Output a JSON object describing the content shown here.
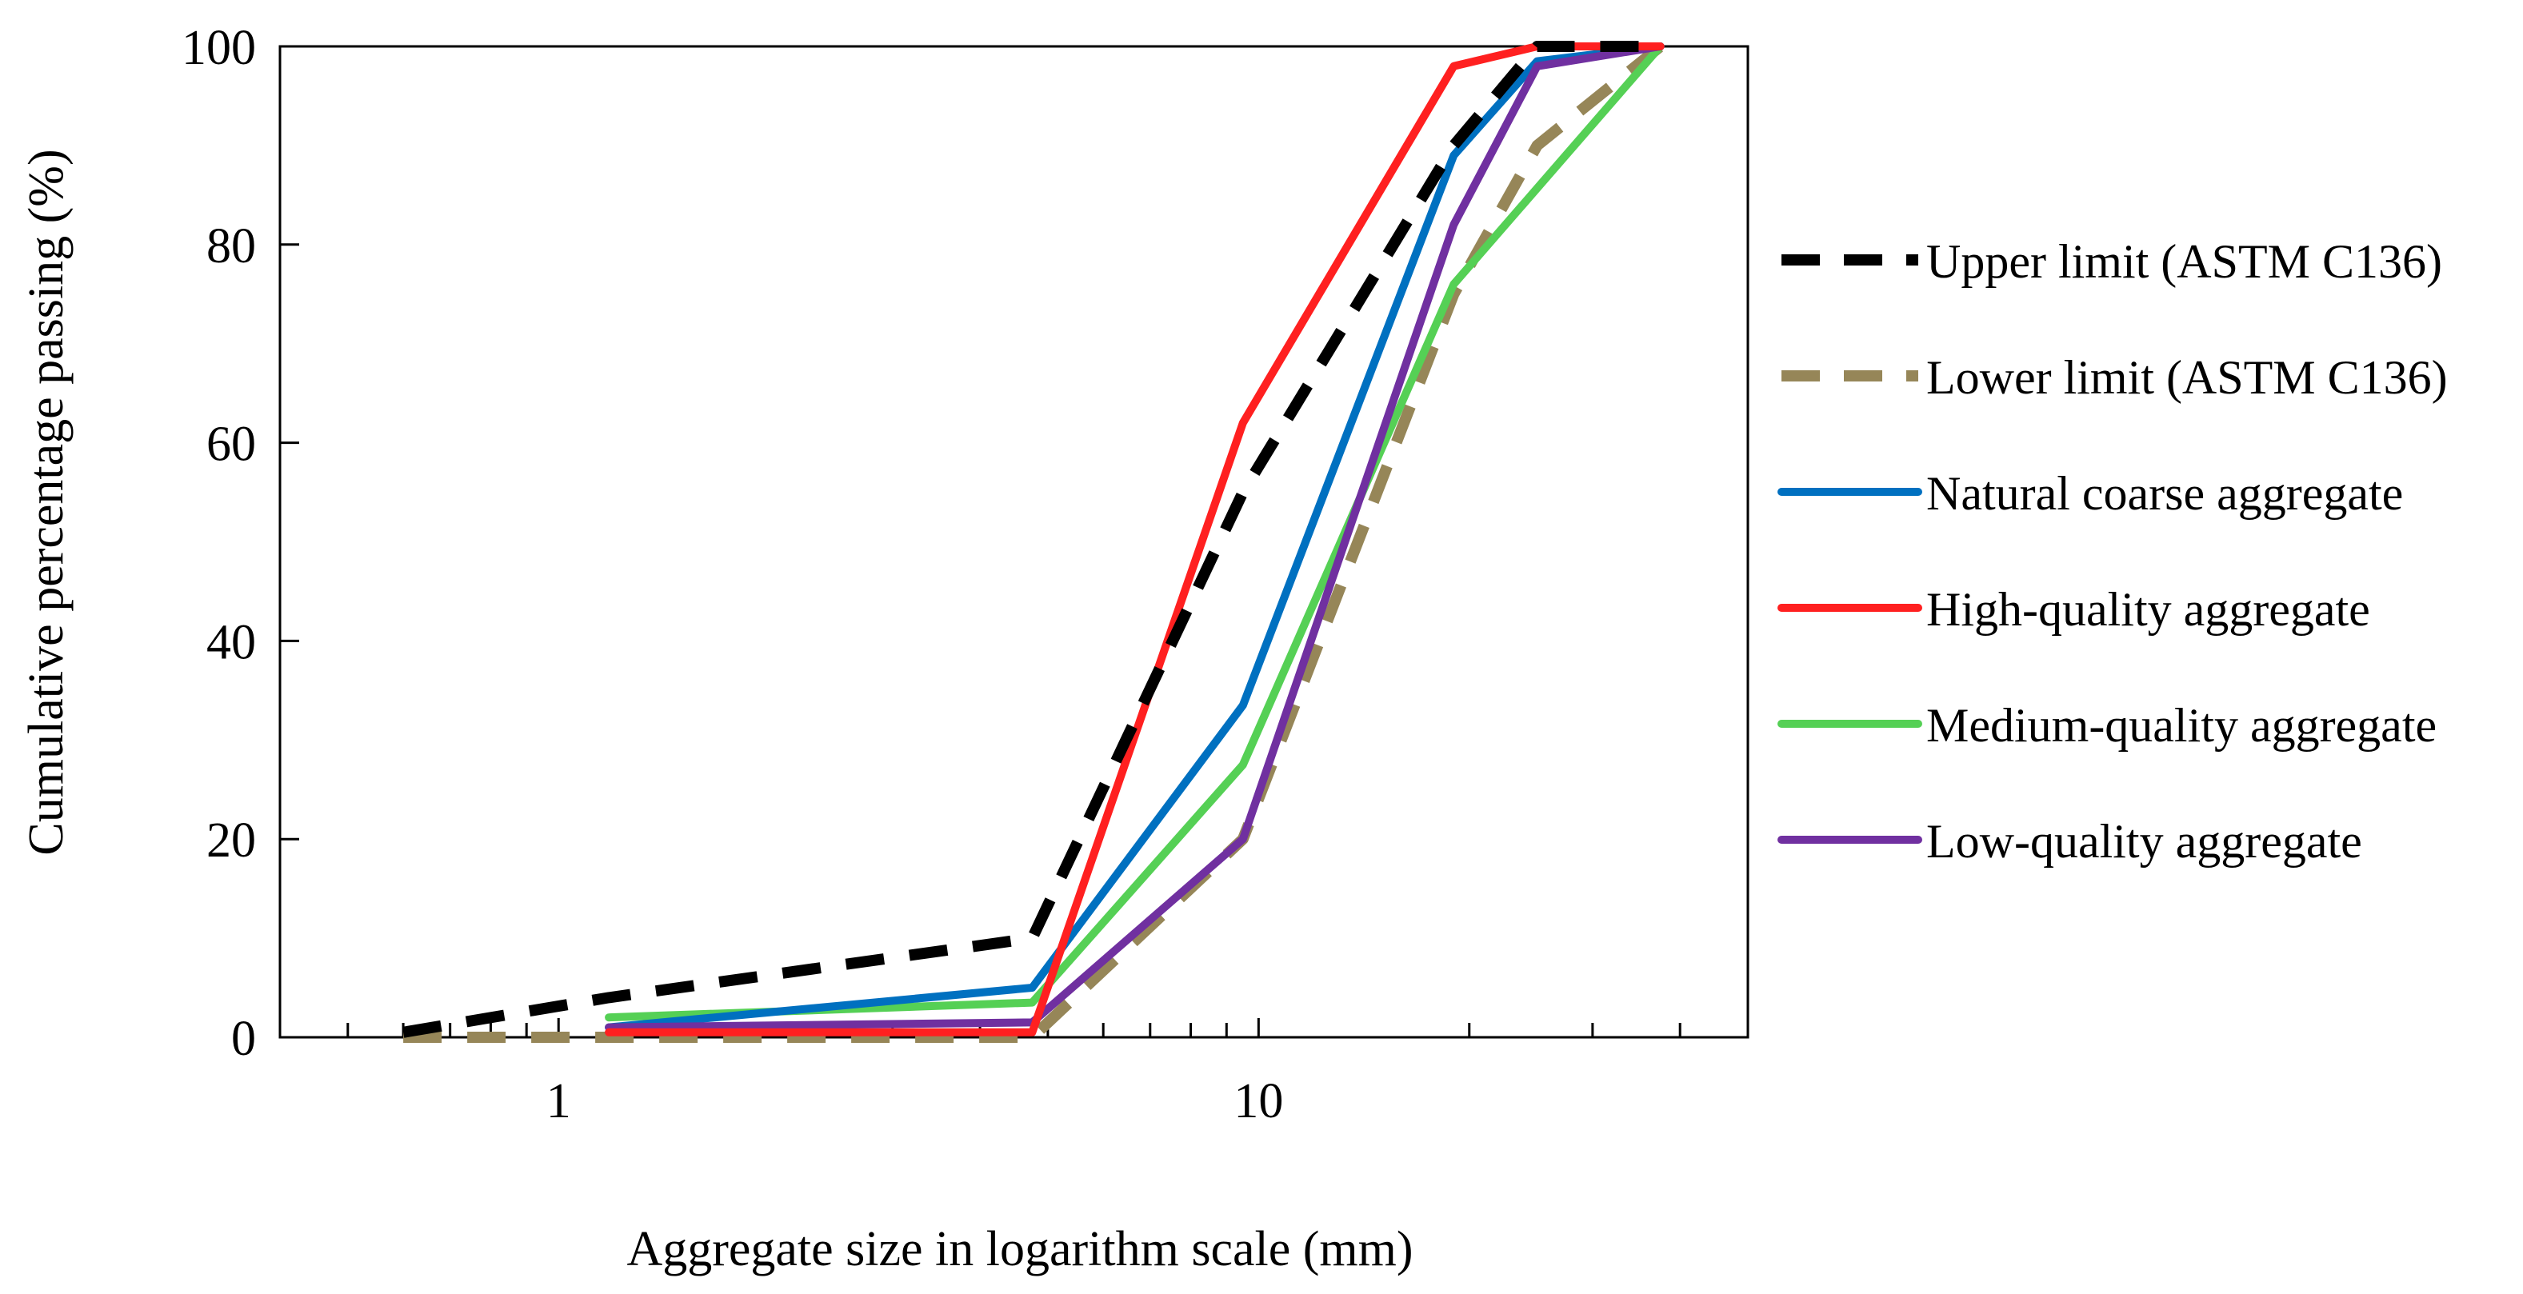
{
  "chart_data": {
    "type": "line",
    "title": "",
    "xlabel": "Aggregate size in logarithm scale (mm)",
    "ylabel": "Cumulative percentage passing (%)",
    "xscale": "log",
    "xlim": [
      0.4,
      50
    ],
    "ylim": [
      0,
      100
    ],
    "x_ticks": [
      1,
      10
    ],
    "x_tick_labels": [
      "1",
      "10"
    ],
    "y_ticks": [
      0,
      20,
      40,
      60,
      80,
      100
    ],
    "y_tick_labels": [
      "0",
      "20",
      "40",
      "60",
      "80",
      "100"
    ],
    "grid": false,
    "legend_position": "right",
    "series": [
      {
        "name": "Upper limit (ASTM C136)",
        "color": "#000000",
        "dashed": true,
        "x": [
          0.6,
          1.18,
          2.36,
          4.75,
          9.5,
          19,
          25,
          37.5
        ],
        "y": [
          0.5,
          4,
          7,
          10,
          55,
          90,
          100,
          100
        ]
      },
      {
        "name": "Lower limit (ASTM C136)",
        "color": "#968658",
        "dashed": true,
        "x": [
          0.6,
          1.18,
          2.36,
          4.75,
          9.5,
          19,
          25,
          37.5
        ],
        "y": [
          0,
          0,
          0,
          0,
          20,
          75,
          90,
          100
        ]
      },
      {
        "name": "Natural coarse aggregate",
        "color": "#0070C0",
        "dashed": false,
        "x": [
          1.18,
          4.75,
          9.5,
          19,
          25,
          37.5
        ],
        "y": [
          1,
          5,
          33.5,
          89,
          98.5,
          100
        ]
      },
      {
        "name": "High-quality aggregate",
        "color": "#FF2020",
        "dashed": false,
        "x": [
          1.18,
          4.75,
          9.5,
          19,
          25,
          37.5
        ],
        "y": [
          0.5,
          0.5,
          62,
          98,
          100,
          100
        ]
      },
      {
        "name": "Medium-quality aggregate",
        "color": "#55D055",
        "dashed": false,
        "x": [
          1.18,
          4.75,
          9.5,
          19,
          37.5
        ],
        "y": [
          2,
          3.5,
          27.5,
          76,
          100
        ]
      },
      {
        "name": "Low-quality aggregate",
        "color": "#7030A0",
        "dashed": false,
        "x": [
          1.18,
          4.75,
          9.5,
          19,
          25,
          37.5
        ],
        "y": [
          1,
          1.5,
          20,
          82,
          98,
          100
        ]
      }
    ]
  }
}
